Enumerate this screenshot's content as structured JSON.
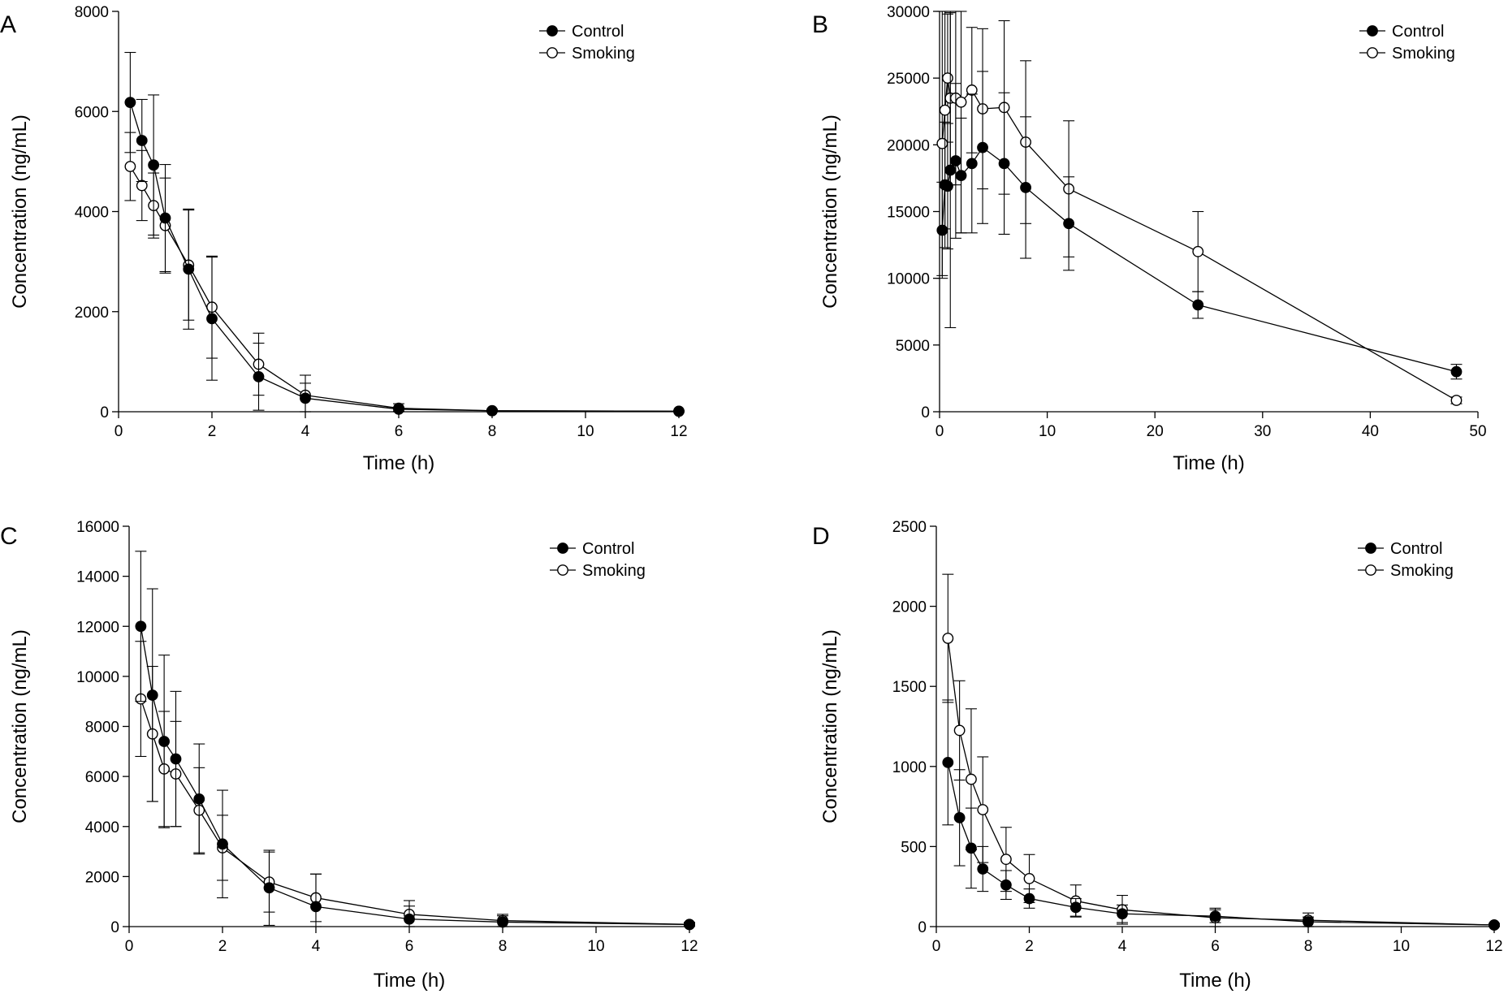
{
  "chart_data": [
    {
      "panel": "A",
      "type": "line",
      "xlabel": "Time (h)",
      "ylabel": "Concentration (ng/mL)",
      "xlim": [
        0,
        12
      ],
      "ylim": [
        0,
        8000
      ],
      "xticks": [
        0,
        2,
        4,
        6,
        8,
        10,
        12
      ],
      "yticks": [
        0,
        2000,
        4000,
        6000,
        8000
      ],
      "legend_position": "top-right",
      "grid": false,
      "series": [
        {
          "name": "Control",
          "marker": "filled",
          "x": [
            0.25,
            0.5,
            0.75,
            1,
            1.5,
            2,
            3,
            4,
            6,
            8,
            12
          ],
          "y": [
            6180,
            5420,
            4930,
            3870,
            2850,
            1860,
            700,
            270,
            50,
            20,
            10
          ],
          "err": [
            1000,
            820,
            1400,
            1070,
            1200,
            1230,
            670,
            300,
            40,
            15,
            8
          ]
        },
        {
          "name": "Smoking",
          "marker": "open",
          "x": [
            0.25,
            0.5,
            0.75,
            1,
            1.5,
            2,
            3,
            4,
            6,
            8,
            12
          ],
          "y": [
            4900,
            4520,
            4120,
            3720,
            2930,
            2090,
            950,
            330,
            70,
            20,
            10
          ],
          "err": [
            680,
            700,
            650,
            950,
            1100,
            1020,
            620,
            400,
            90,
            30,
            12
          ]
        }
      ]
    },
    {
      "panel": "B",
      "type": "line",
      "xlabel": "Time (h)",
      "ylabel": "Concentration (ng/mL)",
      "xlim": [
        0,
        50
      ],
      "ylim": [
        0,
        30000
      ],
      "xticks": [
        0,
        10,
        20,
        30,
        40,
        50
      ],
      "yticks": [
        0,
        5000,
        10000,
        15000,
        20000,
        25000,
        30000
      ],
      "legend_position": "top-right",
      "grid": false,
      "series": [
        {
          "name": "Control",
          "marker": "filled",
          "x": [
            0.25,
            0.5,
            0.75,
            1,
            1.5,
            2,
            3,
            4,
            6,
            8,
            12,
            24,
            48
          ],
          "y": [
            13600,
            17000,
            16900,
            18100,
            18800,
            17700,
            18600,
            19800,
            18600,
            16800,
            14100,
            8000,
            3000
          ],
          "err": [
            3600,
            4700,
            4700,
            11800,
            5800,
            4300,
            5200,
            5700,
            5300,
            5300,
            3500,
            1000,
            550
          ]
        },
        {
          "name": "Smoking",
          "marker": "open",
          "x": [
            0.25,
            0.5,
            0.75,
            1,
            1.5,
            2,
            3,
            4,
            6,
            8,
            12,
            24,
            48
          ],
          "y": [
            20100,
            22600,
            25000,
            23500,
            23500,
            23200,
            24100,
            22700,
            22800,
            20200,
            16700,
            12000,
            850
          ],
          "err": [
            9900,
            8900,
            4800,
            6500,
            6500,
            9800,
            4700,
            6000,
            6500,
            6100,
            5100,
            3000,
            250
          ]
        }
      ]
    },
    {
      "panel": "C",
      "type": "line",
      "xlabel": "Time (h)",
      "ylabel": "Concentration (ng/mL)",
      "xlim": [
        0,
        12
      ],
      "ylim": [
        0,
        16000
      ],
      "xticks": [
        0,
        2,
        4,
        6,
        8,
        10,
        12
      ],
      "yticks": [
        0,
        2000,
        4000,
        6000,
        8000,
        10000,
        12000,
        14000,
        16000
      ],
      "legend_position": "top-right",
      "grid": false,
      "series": [
        {
          "name": "Control",
          "marker": "filled",
          "x": [
            0.25,
            0.5,
            0.75,
            1,
            1.5,
            2,
            3,
            4,
            6,
            8,
            12
          ],
          "y": [
            12000,
            9250,
            7400,
            6700,
            5100,
            3300,
            1550,
            800,
            300,
            180,
            80
          ],
          "err": [
            3000,
            4250,
            3450,
            2700,
            2200,
            2150,
            1500,
            1300,
            520,
            250,
            60
          ]
        },
        {
          "name": "Smoking",
          "marker": "open",
          "x": [
            0.25,
            0.5,
            0.75,
            1,
            1.5,
            2,
            3,
            4,
            6,
            8,
            12
          ],
          "y": [
            9100,
            7700,
            6300,
            6100,
            4650,
            3150,
            1780,
            1150,
            490,
            240,
            90
          ],
          "err": [
            2300,
            2700,
            2300,
            2100,
            1700,
            1300,
            1200,
            950,
            550,
            250,
            80
          ]
        }
      ]
    },
    {
      "panel": "D",
      "type": "line",
      "xlabel": "Time (h)",
      "ylabel": "Concentration (ng/mL)",
      "xlim": [
        0,
        12
      ],
      "ylim": [
        0,
        2500
      ],
      "xticks": [
        0,
        2,
        4,
        6,
        8,
        10,
        12
      ],
      "yticks": [
        0,
        500,
        1000,
        1500,
        2000,
        2500
      ],
      "legend_position": "top-right",
      "grid": false,
      "series": [
        {
          "name": "Control",
          "marker": "filled",
          "x": [
            0.25,
            0.5,
            0.75,
            1,
            1.5,
            2,
            3,
            4,
            6,
            8,
            12
          ],
          "y": [
            1025,
            680,
            490,
            360,
            260,
            175,
            120,
            80,
            65,
            30,
            10
          ],
          "err": [
            390,
            300,
            250,
            140,
            90,
            60,
            55,
            55,
            40,
            30,
            10
          ]
        },
        {
          "name": "Smoking",
          "marker": "open",
          "x": [
            0.25,
            0.5,
            0.75,
            1,
            1.5,
            2,
            3,
            4,
            6,
            8,
            12
          ],
          "y": [
            1800,
            1225,
            920,
            730,
            420,
            300,
            160,
            105,
            55,
            40,
            10
          ],
          "err": [
            400,
            310,
            440,
            330,
            200,
            150,
            100,
            90,
            60,
            45,
            10
          ]
        }
      ]
    }
  ]
}
